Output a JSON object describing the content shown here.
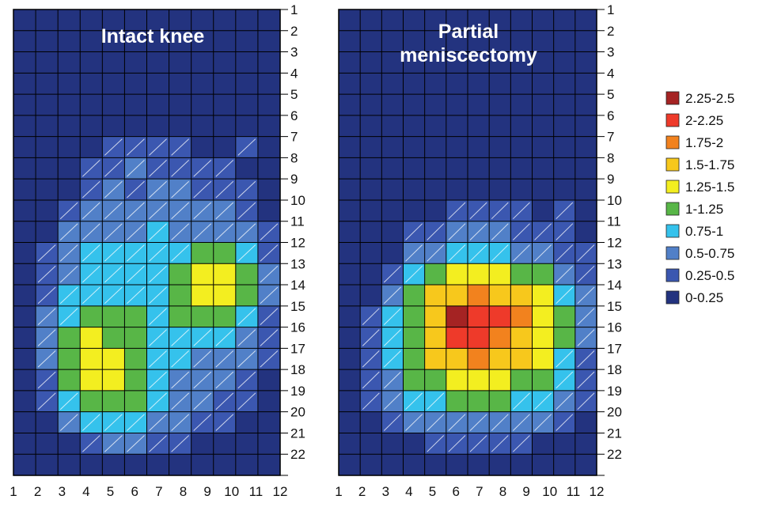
{
  "chart_data": {
    "type": "heatmap",
    "panels": [
      {
        "title_lines": [
          "Intact knee"
        ],
        "x_ticks": [
          "1",
          "2",
          "3",
          "4",
          "5",
          "6",
          "7",
          "8",
          "9",
          "10",
          "11",
          "12"
        ],
        "y_ticks": [
          "1",
          "2",
          "3",
          "4",
          "5",
          "6",
          "7",
          "8",
          "9",
          "10",
          "11",
          "12",
          "13",
          "14",
          "15",
          "16",
          "17",
          "18",
          "19",
          "20",
          "21",
          "22"
        ],
        "xlim": [
          1,
          12
        ],
        "ylim": [
          1,
          22
        ],
        "grid": true,
        "values": [
          [
            0,
            0,
            0,
            0,
            0,
            0,
            0,
            0,
            0,
            0,
            0,
            0
          ],
          [
            0,
            0,
            0,
            0,
            0,
            0,
            0,
            0,
            0,
            0,
            0,
            0
          ],
          [
            0,
            0,
            0,
            0,
            0,
            0,
            0,
            0,
            0,
            0,
            0,
            0
          ],
          [
            0,
            0,
            0,
            0,
            0,
            0,
            0,
            0,
            0,
            0,
            0,
            0
          ],
          [
            0,
            0,
            0,
            0,
            0,
            0,
            0,
            0,
            0,
            0,
            0,
            0
          ],
          [
            0,
            0,
            0,
            0,
            0,
            0,
            0,
            0,
            0,
            0,
            0,
            0
          ],
          [
            0,
            0,
            0,
            0.1,
            0.3,
            0.3,
            0.4,
            0.3,
            0.2,
            0.2,
            0.3,
            0.2
          ],
          [
            0,
            0,
            0.1,
            0.3,
            0.4,
            0.5,
            0.4,
            0.4,
            0.3,
            0.3,
            0.2,
            0.2
          ],
          [
            0,
            0,
            0.2,
            0.4,
            0.55,
            0.45,
            0.55,
            0.5,
            0.4,
            0.4,
            0.3,
            0.2
          ],
          [
            0,
            0.1,
            0.3,
            0.55,
            0.6,
            0.6,
            0.6,
            0.65,
            0.6,
            0.5,
            0.4,
            0.2
          ],
          [
            0,
            0.2,
            0.5,
            0.7,
            0.7,
            0.7,
            0.75,
            0.7,
            0.7,
            0.7,
            0.5,
            0.3
          ],
          [
            0,
            0.3,
            0.6,
            0.8,
            0.8,
            0.8,
            0.8,
            0.9,
            1.1,
            1.1,
            0.9,
            0.4
          ],
          [
            0,
            0.4,
            0.7,
            0.85,
            0.9,
            0.9,
            0.95,
            1.1,
            1.4,
            1.3,
            1.0,
            0.5
          ],
          [
            0,
            0.4,
            0.8,
            0.95,
            0.9,
            0.9,
            0.95,
            1.1,
            1.3,
            1.3,
            1.0,
            0.5
          ],
          [
            0,
            0.5,
            0.9,
            1.1,
            1.1,
            1.0,
            0.95,
            1.0,
            1.1,
            1.1,
            0.9,
            0.4
          ],
          [
            0,
            0.5,
            1.0,
            1.3,
            1.15,
            1.0,
            0.9,
            0.9,
            0.9,
            0.9,
            0.7,
            0.3
          ],
          [
            0,
            0.5,
            1.0,
            1.4,
            1.3,
            1.1,
            0.9,
            0.8,
            0.7,
            0.7,
            0.5,
            0.3
          ],
          [
            0,
            0.4,
            1.0,
            1.35,
            1.3,
            1.1,
            0.9,
            0.7,
            0.6,
            0.5,
            0.4,
            0.2
          ],
          [
            0,
            0.3,
            0.8,
            1.2,
            1.2,
            1.05,
            0.8,
            0.6,
            0.5,
            0.4,
            0.3,
            0.2
          ],
          [
            0,
            0.2,
            0.5,
            0.8,
            0.9,
            0.8,
            0.6,
            0.5,
            0.4,
            0.3,
            0.2,
            0.1
          ],
          [
            0,
            0.1,
            0.2,
            0.4,
            0.5,
            0.5,
            0.4,
            0.3,
            0.2,
            0.2,
            0.1,
            0
          ],
          [
            0,
            0,
            0,
            0.1,
            0.2,
            0.2,
            0.2,
            0.1,
            0.1,
            0,
            0,
            0
          ]
        ]
      },
      {
        "title_lines": [
          "Partial",
          "meniscectomy"
        ],
        "x_ticks": [
          "1",
          "2",
          "3",
          "4",
          "5",
          "6",
          "7",
          "8",
          "9",
          "10",
          "11",
          "12"
        ],
        "y_ticks": [
          "1",
          "2",
          "3",
          "4",
          "5",
          "6",
          "7",
          "8",
          "9",
          "10",
          "11",
          "12",
          "13",
          "14",
          "15",
          "16",
          "17",
          "18",
          "19",
          "20",
          "21",
          "22"
        ],
        "xlim": [
          1,
          12
        ],
        "ylim": [
          1,
          22
        ],
        "grid": true,
        "values": [
          [
            0,
            0,
            0,
            0,
            0,
            0,
            0,
            0,
            0,
            0,
            0,
            0
          ],
          [
            0,
            0,
            0,
            0,
            0,
            0,
            0,
            0,
            0,
            0,
            0,
            0
          ],
          [
            0,
            0,
            0,
            0,
            0,
            0,
            0,
            0,
            0,
            0,
            0,
            0
          ],
          [
            0,
            0,
            0,
            0,
            0,
            0,
            0,
            0,
            0,
            0,
            0,
            0
          ],
          [
            0,
            0,
            0,
            0,
            0,
            0,
            0,
            0,
            0,
            0,
            0,
            0
          ],
          [
            0,
            0,
            0,
            0,
            0,
            0,
            0,
            0,
            0,
            0,
            0,
            0
          ],
          [
            0,
            0,
            0,
            0,
            0,
            0,
            0,
            0,
            0,
            0,
            0,
            0
          ],
          [
            0,
            0,
            0,
            0,
            0,
            0,
            0,
            0,
            0,
            0,
            0,
            0
          ],
          [
            0,
            0,
            0,
            0,
            0,
            0,
            0,
            0,
            0,
            0.2,
            0.2,
            0
          ],
          [
            0,
            0,
            0,
            0.1,
            0.2,
            0.3,
            0.3,
            0.3,
            0.3,
            0.2,
            0.3,
            0.1
          ],
          [
            0,
            0,
            0.1,
            0.3,
            0.4,
            0.5,
            0.5,
            0.5,
            0.4,
            0.4,
            0.3,
            0.2
          ],
          [
            0,
            0,
            0.2,
            0.5,
            0.7,
            0.8,
            0.8,
            0.8,
            0.7,
            0.6,
            0.4,
            0.3
          ],
          [
            0,
            0.1,
            0.4,
            0.8,
            1.1,
            1.3,
            1.3,
            1.3,
            1.2,
            1.0,
            0.7,
            0.4
          ],
          [
            0,
            0.2,
            0.6,
            1.0,
            1.5,
            1.7,
            1.8,
            1.7,
            1.6,
            1.3,
            0.9,
            0.5
          ],
          [
            0,
            0.3,
            0.8,
            1.2,
            1.7,
            2.3,
            2.1,
            2.0,
            1.8,
            1.4,
            1.0,
            0.5
          ],
          [
            0,
            0.3,
            0.8,
            1.2,
            1.6,
            2.0,
            2.2,
            1.9,
            1.7,
            1.4,
            1.0,
            0.5
          ],
          [
            0,
            0.3,
            0.8,
            1.2,
            1.5,
            1.7,
            1.8,
            1.7,
            1.5,
            1.3,
            0.9,
            0.4
          ],
          [
            0,
            0.3,
            0.7,
            1.0,
            1.2,
            1.35,
            1.4,
            1.3,
            1.2,
            1.1,
            0.8,
            0.4
          ],
          [
            0,
            0.3,
            0.6,
            0.8,
            0.95,
            1.0,
            1.0,
            1.0,
            0.9,
            0.8,
            0.6,
            0.3
          ],
          [
            0,
            0.2,
            0.4,
            0.5,
            0.6,
            0.6,
            0.6,
            0.6,
            0.55,
            0.5,
            0.4,
            0.2
          ],
          [
            0,
            0,
            0.1,
            0.2,
            0.3,
            0.3,
            0.3,
            0.3,
            0.3,
            0.2,
            0.2,
            0.1
          ],
          [
            0,
            0,
            0,
            0,
            0,
            0.1,
            0.1,
            0.1,
            0,
            0,
            0,
            0
          ]
        ]
      }
    ],
    "legend": {
      "placement": "right",
      "items": [
        {
          "label": "2.25-2.5",
          "color": "#a52323",
          "min": 2.25,
          "max": 2.5
        },
        {
          "label": "2-2.25",
          "color": "#ee3a2a",
          "min": 2.0,
          "max": 2.25
        },
        {
          "label": "1.75-2",
          "color": "#f2821e",
          "min": 1.75,
          "max": 2.0
        },
        {
          "label": "1.5-1.75",
          "color": "#f7c81c",
          "min": 1.5,
          "max": 1.75
        },
        {
          "label": "1.25-1.5",
          "color": "#f3ee20",
          "min": 1.25,
          "max": 1.5
        },
        {
          "label": "1-1.25",
          "color": "#58b647",
          "min": 1.0,
          "max": 1.25
        },
        {
          "label": "0.75-1",
          "color": "#35c2ec",
          "min": 0.75,
          "max": 1.0
        },
        {
          "label": "0.5-0.75",
          "color": "#5180c8",
          "min": 0.5,
          "max": 0.75
        },
        {
          "label": "0.25-0.5",
          "color": "#3b57b0",
          "min": 0.25,
          "max": 0.5
        },
        {
          "label": "0-0.25",
          "color": "#23337f",
          "min": 0.0,
          "max": 0.25
        }
      ]
    }
  }
}
